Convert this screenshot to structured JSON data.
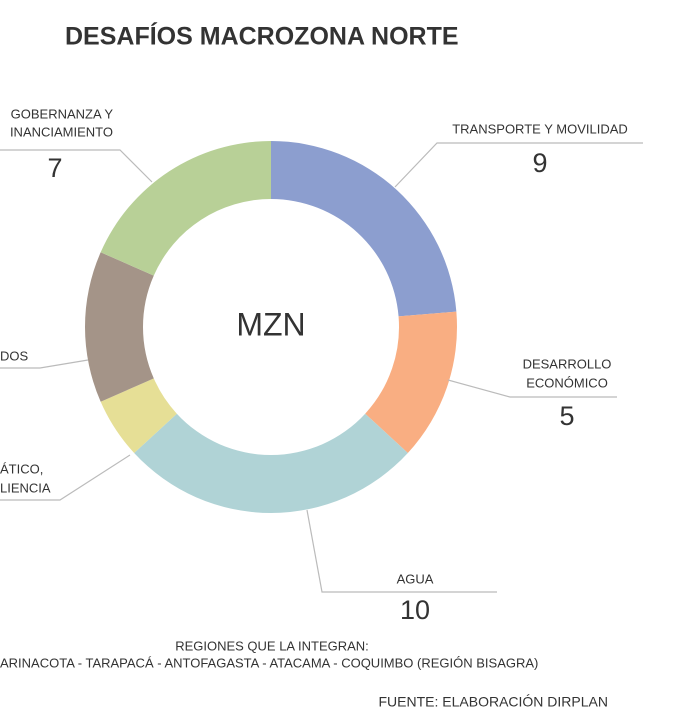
{
  "chart_data": {
    "type": "donut",
    "title": "DESAFÍOS MACROZONA NORTE",
    "center_label": "MZN",
    "categories": [
      [
        "TRANSPORTE Y MOVILIDAD"
      ],
      [
        "DESARROLLO",
        "ECONÓMICO"
      ],
      [
        "AGUA"
      ],
      [
        "ÁTICO,",
        "LIENCIA"
      ],
      [
        "DOS"
      ],
      [
        "GOBERNANZA Y",
        "INANCIAMIENTO"
      ]
    ],
    "values": [
      9,
      5,
      10,
      2,
      5,
      7
    ],
    "colors": [
      "#8c9ecf",
      "#f9ae82",
      "#b0d3d6",
      "#e6df96",
      "#a49488",
      "#b8d097"
    ],
    "regions_title": "REGIONES QUE LA INTEGRAN:",
    "regions": "ARINACOTA -  TARAPACÁ - ANTOFAGASTA  -  ATACAMA - COQUIMBO (REGIÓN BISAGRA)",
    "source": "FUENTE: ELABORACIÓN DIRPLAN"
  }
}
